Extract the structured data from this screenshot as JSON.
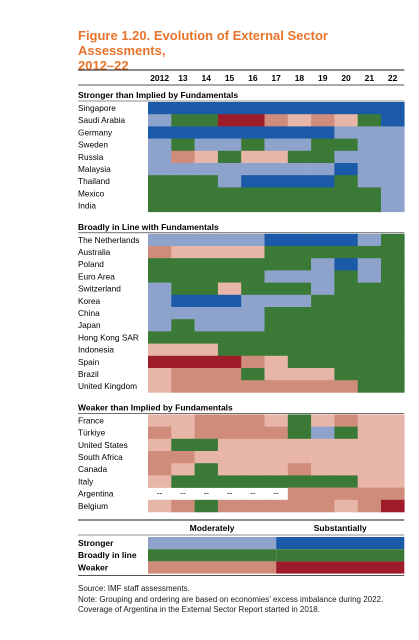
{
  "title_line1": "Figure 1.20. Evolution of External Sector Assessments,",
  "title_line2": "2012–22",
  "source": "Source: IMF staff assessments.",
  "note": "Note: Grouping and ordering are based on economies’ excess imbalance during 2022. Coverage of Argentina in the External Sector Report started in 2018.",
  "colors": {
    "SS": "#1a5aa8",
    "MS": "#8ea3cc",
    "BL": "#3a7a36",
    "MW": "#e8b6a8",
    "SW": "#9e1b2a",
    "MW2": "#d08c7a"
  },
  "chart_data": {
    "type": "heatmap",
    "years": [
      "2012",
      "13",
      "14",
      "15",
      "16",
      "17",
      "18",
      "19",
      "20",
      "21",
      "22"
    ],
    "legend": {
      "col_headers": [
        "Moderately",
        "Substantially"
      ],
      "rows": [
        {
          "label": "Stronger",
          "moderate": "MS",
          "substantial": "SS"
        },
        {
          "label": "Broadly in line",
          "moderate": "BL",
          "substantial": "BL"
        },
        {
          "label": "Weaker",
          "moderate": "MW2",
          "substantial": "SW"
        }
      ]
    },
    "groups": [
      {
        "title": "Stronger than Implied by Fundamentals",
        "rows": [
          {
            "name": "Singapore",
            "values": [
              "SS",
              "SS",
              "SS",
              "SS",
              "SS",
              "SS",
              "SS",
              "SS",
              "SS",
              "SS",
              "SS"
            ]
          },
          {
            "name": "Saudi Arabia",
            "values": [
              "MS",
              "BL",
              "BL",
              "SW",
              "SW",
              "MW2",
              "MW",
              "MW2",
              "MW",
              "BL",
              "SS"
            ]
          },
          {
            "name": "Germany",
            "values": [
              "SS",
              "SS",
              "SS",
              "SS",
              "SS",
              "SS",
              "SS",
              "SS",
              "MS",
              "MS",
              "MS"
            ]
          },
          {
            "name": "Sweden",
            "values": [
              "MS",
              "BL",
              "MS",
              "MS",
              "BL",
              "MS",
              "MS",
              "BL",
              "BL",
              "MS",
              "MS"
            ]
          },
          {
            "name": "Russia",
            "values": [
              "MS",
              "MW2",
              "MW",
              "BL",
              "MW",
              "MW",
              "BL",
              "BL",
              "MS",
              "MS",
              "MS"
            ]
          },
          {
            "name": "Malaysia",
            "values": [
              "MS",
              "MS",
              "MS",
              "MS",
              "MS",
              "MS",
              "MS",
              "MS",
              "SS",
              "MS",
              "MS"
            ]
          },
          {
            "name": "Thailand",
            "values": [
              "BL",
              "BL",
              "BL",
              "MS",
              "SS",
              "SS",
              "SS",
              "SS",
              "BL",
              "MS",
              "MS"
            ]
          },
          {
            "name": "Mexico",
            "values": [
              "BL",
              "BL",
              "BL",
              "BL",
              "BL",
              "BL",
              "BL",
              "BL",
              "BL",
              "BL",
              "MS"
            ]
          },
          {
            "name": "India",
            "values": [
              "BL",
              "BL",
              "BL",
              "BL",
              "BL",
              "BL",
              "BL",
              "BL",
              "BL",
              "BL",
              "MS"
            ]
          }
        ]
      },
      {
        "title": "Broadly in Line with Fundamentals",
        "rows": [
          {
            "name": "The Netherlands",
            "values": [
              "MS",
              "MS",
              "MS",
              "MS",
              "MS",
              "SS",
              "SS",
              "SS",
              "SS",
              "MS",
              "BL"
            ]
          },
          {
            "name": "Australia",
            "values": [
              "MW2",
              "MW",
              "MW",
              "MW",
              "MW",
              "BL",
              "BL",
              "BL",
              "BL",
              "BL",
              "BL"
            ]
          },
          {
            "name": "Poland",
            "values": [
              "BL",
              "BL",
              "BL",
              "BL",
              "BL",
              "BL",
              "BL",
              "MS",
              "SS",
              "MS",
              "BL"
            ]
          },
          {
            "name": "Euro Area",
            "values": [
              "BL",
              "BL",
              "BL",
              "BL",
              "BL",
              "MS",
              "MS",
              "MS",
              "BL",
              "MS",
              "BL"
            ]
          },
          {
            "name": "Switzerland",
            "values": [
              "MS",
              "BL",
              "BL",
              "MW",
              "BL",
              "BL",
              "BL",
              "MS",
              "BL",
              "BL",
              "BL"
            ]
          },
          {
            "name": "Korea",
            "values": [
              "MS",
              "SS",
              "SS",
              "SS",
              "MS",
              "MS",
              "MS",
              "BL",
              "BL",
              "BL",
              "BL"
            ]
          },
          {
            "name": "China",
            "values": [
              "MS",
              "MS",
              "MS",
              "MS",
              "MS",
              "BL",
              "BL",
              "BL",
              "BL",
              "BL",
              "BL"
            ]
          },
          {
            "name": "Japan",
            "values": [
              "MS",
              "BL",
              "MS",
              "MS",
              "MS",
              "BL",
              "BL",
              "BL",
              "BL",
              "BL",
              "BL"
            ]
          },
          {
            "name": "Hong Kong SAR",
            "values": [
              "BL",
              "BL",
              "BL",
              "BL",
              "BL",
              "BL",
              "BL",
              "BL",
              "BL",
              "BL",
              "BL"
            ]
          },
          {
            "name": "Indonesia",
            "values": [
              "MW",
              "MW",
              "MW",
              "BL",
              "BL",
              "BL",
              "BL",
              "BL",
              "BL",
              "BL",
              "BL"
            ]
          },
          {
            "name": "Spain",
            "values": [
              "SW",
              "SW",
              "SW",
              "SW",
              "MW2",
              "MW",
              "BL",
              "BL",
              "BL",
              "BL",
              "BL"
            ]
          },
          {
            "name": "Brazil",
            "values": [
              "MW",
              "MW2",
              "MW2",
              "MW2",
              "BL",
              "MW",
              "MW",
              "MW",
              "BL",
              "BL",
              "BL"
            ]
          },
          {
            "name": "United Kingdom",
            "values": [
              "MW",
              "MW2",
              "MW2",
              "MW2",
              "MW2",
              "MW2",
              "MW2",
              "MW2",
              "MW2",
              "BL",
              "BL"
            ]
          }
        ]
      },
      {
        "title": "Weaker than Implied by Fundamentals",
        "rows": [
          {
            "name": "France",
            "values": [
              "MW",
              "MW",
              "MW2",
              "MW2",
              "MW2",
              "MW",
              "BL",
              "MW",
              "MW2",
              "MW",
              "MW"
            ]
          },
          {
            "name": "Türkiye",
            "values": [
              "MW2",
              "MW",
              "MW2",
              "MW2",
              "MW2",
              "MW2",
              "BL",
              "MS",
              "BL",
              "MW",
              "MW"
            ]
          },
          {
            "name": "United States",
            "values": [
              "MW",
              "BL",
              "BL",
              "MW",
              "MW",
              "MW",
              "MW",
              "MW",
              "MW",
              "MW",
              "MW"
            ]
          },
          {
            "name": "South Africa",
            "values": [
              "MW2",
              "MW2",
              "MW",
              "MW",
              "MW",
              "MW",
              "MW",
              "MW",
              "MW",
              "MW",
              "MW"
            ]
          },
          {
            "name": "Canada",
            "values": [
              "MW2",
              "MW",
              "BL",
              "MW",
              "MW",
              "MW",
              "MW2",
              "MW",
              "MW",
              "MW",
              "MW"
            ]
          },
          {
            "name": "Italy",
            "values": [
              "MW",
              "BL",
              "BL",
              "BL",
              "BL",
              "BL",
              "BL",
              "BL",
              "BL",
              "MW",
              "MW"
            ]
          },
          {
            "name": "Argentina",
            "values": [
              "--",
              "--",
              "--",
              "--",
              "--",
              "--",
              "MW2",
              "MW2",
              "MW2",
              "MW2",
              "MW2"
            ]
          },
          {
            "name": "Belgium",
            "values": [
              "MW",
              "MW2",
              "BL",
              "MW2",
              "MW2",
              "MW2",
              "MW2",
              "MW2",
              "MW",
              "MW2",
              "SW"
            ]
          }
        ]
      }
    ]
  }
}
